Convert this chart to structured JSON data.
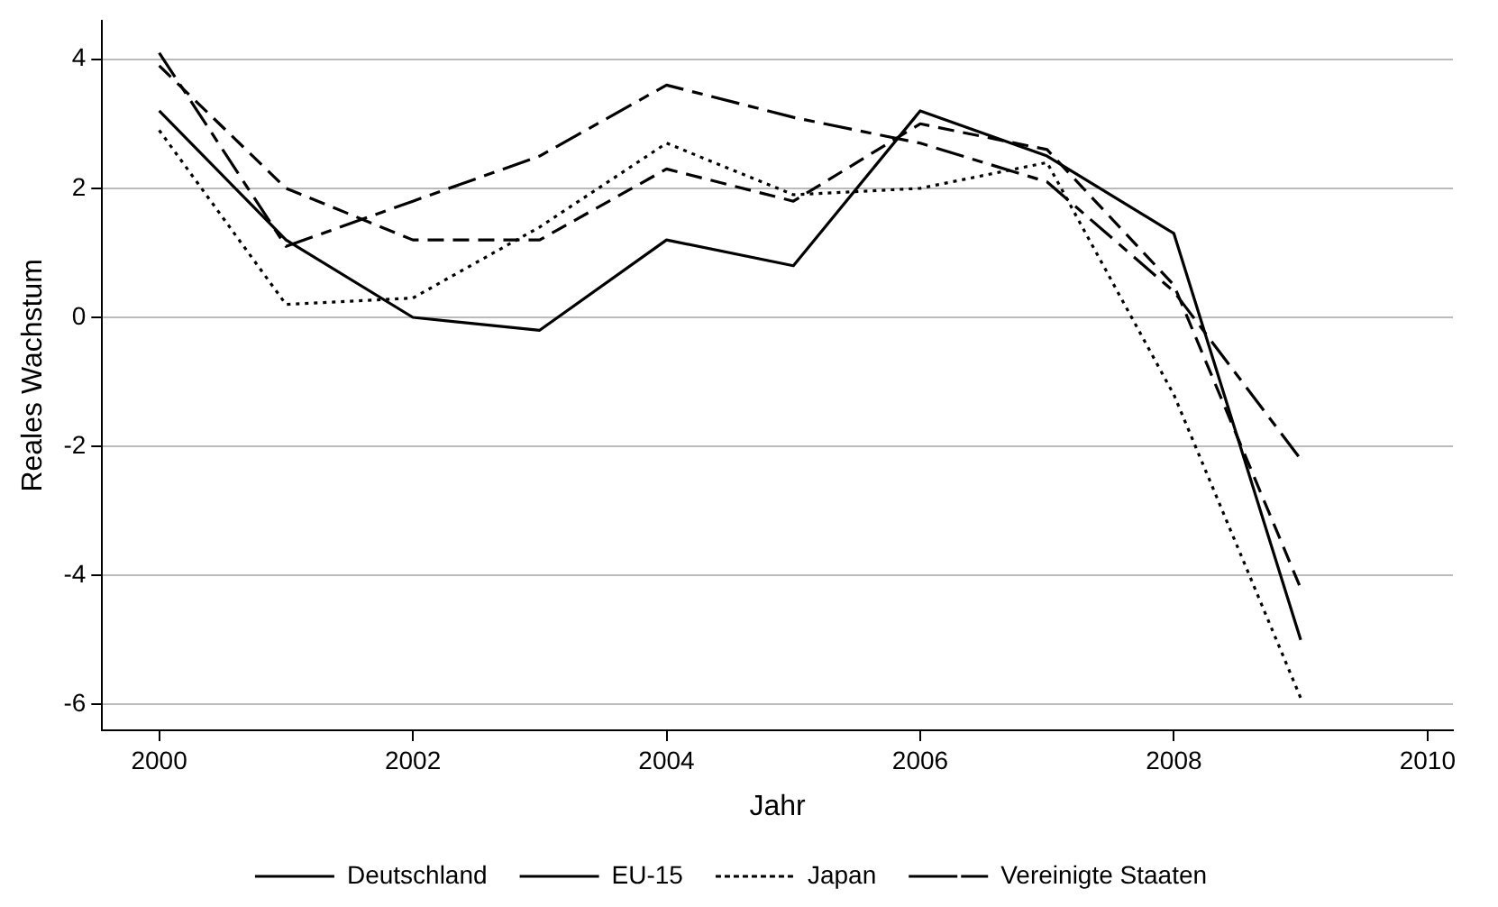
{
  "chart_data": {
    "type": "line",
    "xlabel": "Jahr",
    "ylabel": "Reales Wachstum",
    "x": [
      2000,
      2001,
      2002,
      2003,
      2004,
      2005,
      2006,
      2007,
      2008,
      2009
    ],
    "series": [
      {
        "name": "Deutschland",
        "color": "#000000",
        "line_style": "solid",
        "values": [
          3.2,
          1.2,
          0.0,
          -0.2,
          1.2,
          0.8,
          3.2,
          2.5,
          1.3,
          -5.0
        ]
      },
      {
        "name": "EU-15",
        "color": "#000000",
        "line_style": "dashed",
        "values": [
          3.9,
          2.0,
          1.2,
          1.2,
          2.3,
          1.8,
          3.0,
          2.6,
          0.5,
          -4.2
        ]
      },
      {
        "name": "Japan",
        "color": "#000000",
        "line_style": "dotted",
        "values": [
          2.9,
          0.2,
          0.3,
          1.4,
          2.7,
          1.9,
          2.0,
          2.4,
          -1.2,
          -5.9
        ]
      },
      {
        "name": "Vereinigte Staaten",
        "color": "#000000",
        "line_style": "dashdot",
        "values": [
          4.1,
          1.1,
          1.8,
          2.5,
          3.6,
          3.1,
          2.7,
          2.1,
          0.4,
          -2.2
        ]
      }
    ],
    "xlim": [
      1999.55,
      2010.2
    ],
    "xticks": [
      2000,
      2002,
      2004,
      2006,
      2008,
      2010
    ],
    "ylim": [
      -6.4,
      4.6
    ],
    "yticks": [
      -6,
      -4,
      -2,
      0,
      2,
      4
    ],
    "grid": "y",
    "legend": "bottom",
    "marker": "none"
  }
}
